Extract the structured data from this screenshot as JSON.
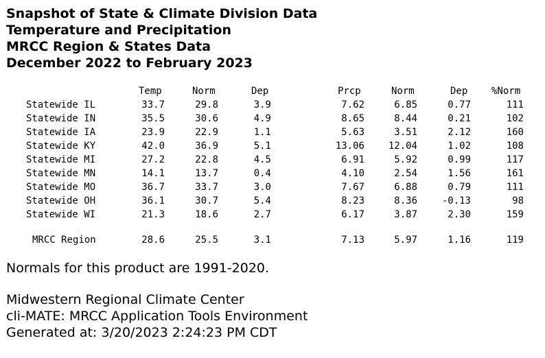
{
  "title_lines": [
    "Snapshot of State & Climate Division Data",
    "Temperature and Precipitation",
    "MRCC Region & States Data",
    "December 2022 to February 2023"
  ],
  "headers": {
    "temp": "Temp",
    "temp_norm": "Norm",
    "temp_dep": "Dep",
    "prcp": "Prcp",
    "prcp_norm": "Norm",
    "prcp_dep": "Dep",
    "pct_norm": "%Norm"
  },
  "rows": [
    {
      "name": "Statewide IL",
      "temp": "33.7",
      "temp_norm": "29.8",
      "temp_dep": "3.9",
      "prcp": "7.62",
      "prcp_norm": "6.85",
      "prcp_dep": "0.77",
      "pct_norm": "111"
    },
    {
      "name": "Statewide IN",
      "temp": "35.5",
      "temp_norm": "30.6",
      "temp_dep": "4.9",
      "prcp": "8.65",
      "prcp_norm": "8.44",
      "prcp_dep": "0.21",
      "pct_norm": "102"
    },
    {
      "name": "Statewide IA",
      "temp": "23.9",
      "temp_norm": "22.9",
      "temp_dep": "1.1",
      "prcp": "5.63",
      "prcp_norm": "3.51",
      "prcp_dep": "2.12",
      "pct_norm": "160"
    },
    {
      "name": "Statewide KY",
      "temp": "42.0",
      "temp_norm": "36.9",
      "temp_dep": "5.1",
      "prcp": "13.06",
      "prcp_norm": "12.04",
      "prcp_dep": "1.02",
      "pct_norm": "108"
    },
    {
      "name": "Statewide MI",
      "temp": "27.2",
      "temp_norm": "22.8",
      "temp_dep": "4.5",
      "prcp": "6.91",
      "prcp_norm": "5.92",
      "prcp_dep": "0.99",
      "pct_norm": "117"
    },
    {
      "name": "Statewide MN",
      "temp": "14.1",
      "temp_norm": "13.7",
      "temp_dep": "0.4",
      "prcp": "4.10",
      "prcp_norm": "2.54",
      "prcp_dep": "1.56",
      "pct_norm": "161"
    },
    {
      "name": "Statewide MO",
      "temp": "36.7",
      "temp_norm": "33.7",
      "temp_dep": "3.0",
      "prcp": "7.67",
      "prcp_norm": "6.88",
      "prcp_dep": "0.79",
      "pct_norm": "111"
    },
    {
      "name": "Statewide OH",
      "temp": "36.1",
      "temp_norm": "30.7",
      "temp_dep": "5.4",
      "prcp": "8.23",
      "prcp_norm": "8.36",
      "prcp_dep": "-0.13",
      "pct_norm": "98"
    },
    {
      "name": "Statewide WI",
      "temp": "21.3",
      "temp_norm": "18.6",
      "temp_dep": "2.7",
      "prcp": "6.17",
      "prcp_norm": "3.87",
      "prcp_dep": "2.30",
      "pct_norm": "159"
    }
  ],
  "region_row": {
    "name": "MRCC Region",
    "temp": "28.6",
    "temp_norm": "25.5",
    "temp_dep": "3.1",
    "prcp": "7.13",
    "prcp_norm": "5.97",
    "prcp_dep": "1.16",
    "pct_norm": "119"
  },
  "footer": {
    "normals_note": "Normals for this product are 1991-2020.",
    "org": "Midwestern Regional Climate Center",
    "tool": "cli-MATE: MRCC Application Tools Environment",
    "generated": "Generated at: 3/20/2023 2:24:23 PM CDT"
  }
}
